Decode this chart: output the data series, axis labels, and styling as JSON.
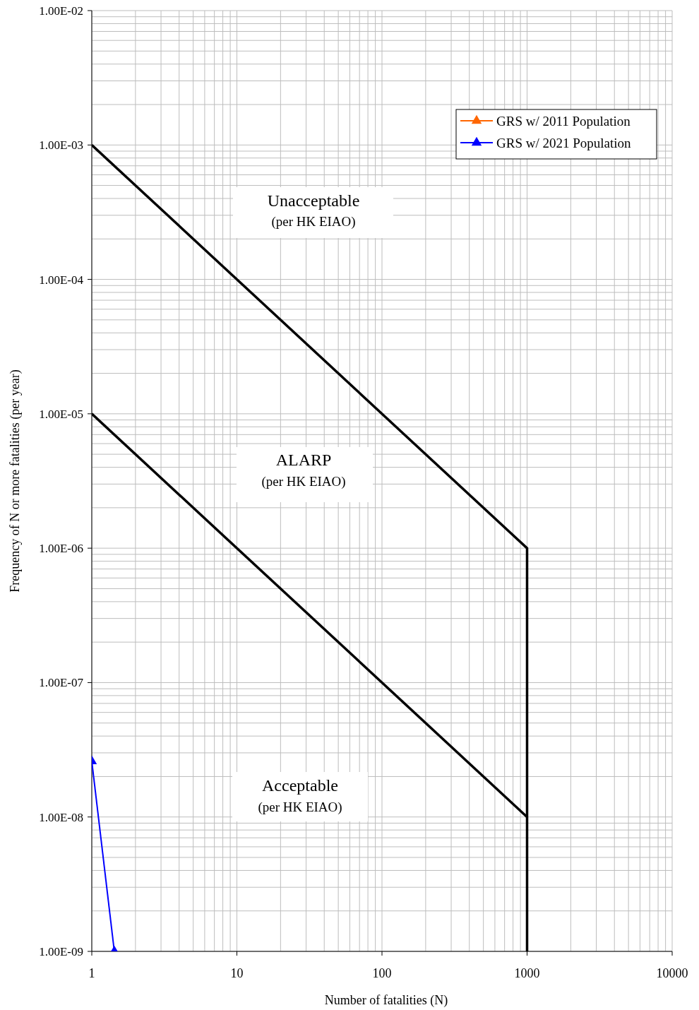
{
  "chart_data": {
    "type": "line",
    "xlabel": "Number of fatalities (N)",
    "ylabel": "Frequency of N or more fatalities (per year)",
    "log": "xy",
    "grid": true,
    "legend": "top right",
    "line_style": "solid",
    "xlim": [
      1,
      10000
    ],
    "xticks": [
      1,
      10,
      100,
      1000,
      10000
    ],
    "ylim": [
      1e-09,
      0.01
    ],
    "yticks": [
      {
        "value": 1e-09,
        "label": "1.00E-09"
      },
      {
        "value": 1e-08,
        "label": "1.00E-08"
      },
      {
        "value": 1e-07,
        "label": "1.00E-07"
      },
      {
        "value": 1e-06,
        "label": "1.00E-06"
      },
      {
        "value": 1e-05,
        "label": "1.00E-05"
      },
      {
        "value": 0.0001,
        "label": "1.00E-04"
      },
      {
        "value": 0.001,
        "label": "1.00E-03"
      },
      {
        "value": 0.01,
        "label": "1.00E-02"
      }
    ],
    "series": [
      {
        "color": "#000000",
        "marker": "none",
        "x": [
          1,
          1000,
          1000
        ],
        "values": [
          0.001,
          1e-06,
          1e-09
        ]
      },
      {
        "color": "#000000",
        "marker": "none",
        "x": [
          1,
          1000
        ],
        "values": [
          1e-05,
          1e-08
        ]
      },
      {
        "name": "GRS w/ 2011 Population",
        "color": "#ff6600",
        "marker": "triangle",
        "values": [
          null
        ]
      },
      {
        "name": "GRS w/ 2021 Population",
        "color": "#0000ff",
        "marker": "triangle",
        "x": [
          1,
          1.43
        ],
        "values": [
          2.6e-08,
          1e-09
        ]
      }
    ],
    "annotations": [
      "Unacceptable",
      "(per HK EIAO)",
      "ALARP",
      "(per HK EIAO)",
      "Acceptable",
      "(per HK EIAO)"
    ]
  }
}
